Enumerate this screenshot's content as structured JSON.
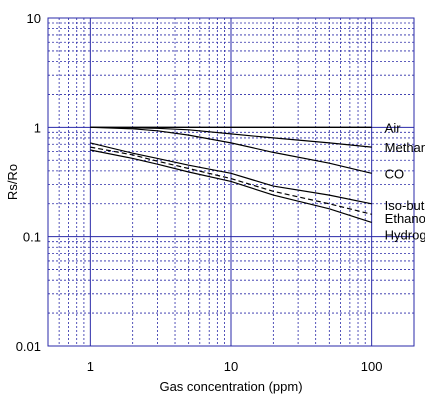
{
  "chart_data": {
    "type": "line",
    "xlabel": "Gas concentration (ppm)",
    "ylabel": "Rs/Ro",
    "x_scale": "log",
    "y_scale": "log",
    "xlim": [
      0.5,
      200
    ],
    "ylim": [
      0.01,
      10
    ],
    "x_ticks": [
      {
        "value": 1,
        "label": "1"
      },
      {
        "value": 10,
        "label": "10"
      },
      {
        "value": 100,
        "label": "100"
      }
    ],
    "y_ticks": [
      {
        "value": 0.01,
        "label": "0.01"
      },
      {
        "value": 0.1,
        "label": "0.1"
      },
      {
        "value": 1,
        "label": "1"
      },
      {
        "value": 10,
        "label": "10"
      }
    ],
    "grid": true,
    "grid_color": "#2a2aa8",
    "line_color": "#000000",
    "reference_line": {
      "name": "Air",
      "y": 1
    },
    "series": [
      {
        "name": "Methane",
        "style": "solid",
        "x": [
          1,
          2,
          3,
          5,
          10,
          20,
          50,
          100
        ],
        "y": [
          1.0,
          0.99,
          0.98,
          0.95,
          0.87,
          0.8,
          0.72,
          0.66
        ]
      },
      {
        "name": "CO",
        "style": "solid",
        "x": [
          1,
          2,
          3,
          5,
          10,
          20,
          50,
          100
        ],
        "y": [
          1.0,
          0.97,
          0.93,
          0.85,
          0.72,
          0.59,
          0.47,
          0.38
        ]
      },
      {
        "name": "Iso-butane",
        "style": "solid",
        "x": [
          1,
          2,
          3,
          5,
          10,
          20,
          50,
          100
        ],
        "y": [
          0.72,
          0.58,
          0.52,
          0.45,
          0.38,
          0.29,
          0.24,
          0.2
        ]
      },
      {
        "name": "Ethanol",
        "style": "dashed",
        "x": [
          1,
          2,
          3,
          5,
          10,
          20,
          50,
          100
        ],
        "y": [
          0.66,
          0.56,
          0.49,
          0.42,
          0.34,
          0.26,
          0.2,
          0.16
        ]
      },
      {
        "name": "Hydrogen",
        "style": "solid",
        "x": [
          1,
          2,
          3,
          5,
          10,
          20,
          50,
          100
        ],
        "y": [
          0.62,
          0.52,
          0.46,
          0.39,
          0.32,
          0.24,
          0.18,
          0.135
        ]
      }
    ],
    "labels": [
      "Air",
      "Methane",
      "CO",
      "Iso-butane",
      "Ethanol",
      "Hydrogen"
    ]
  }
}
